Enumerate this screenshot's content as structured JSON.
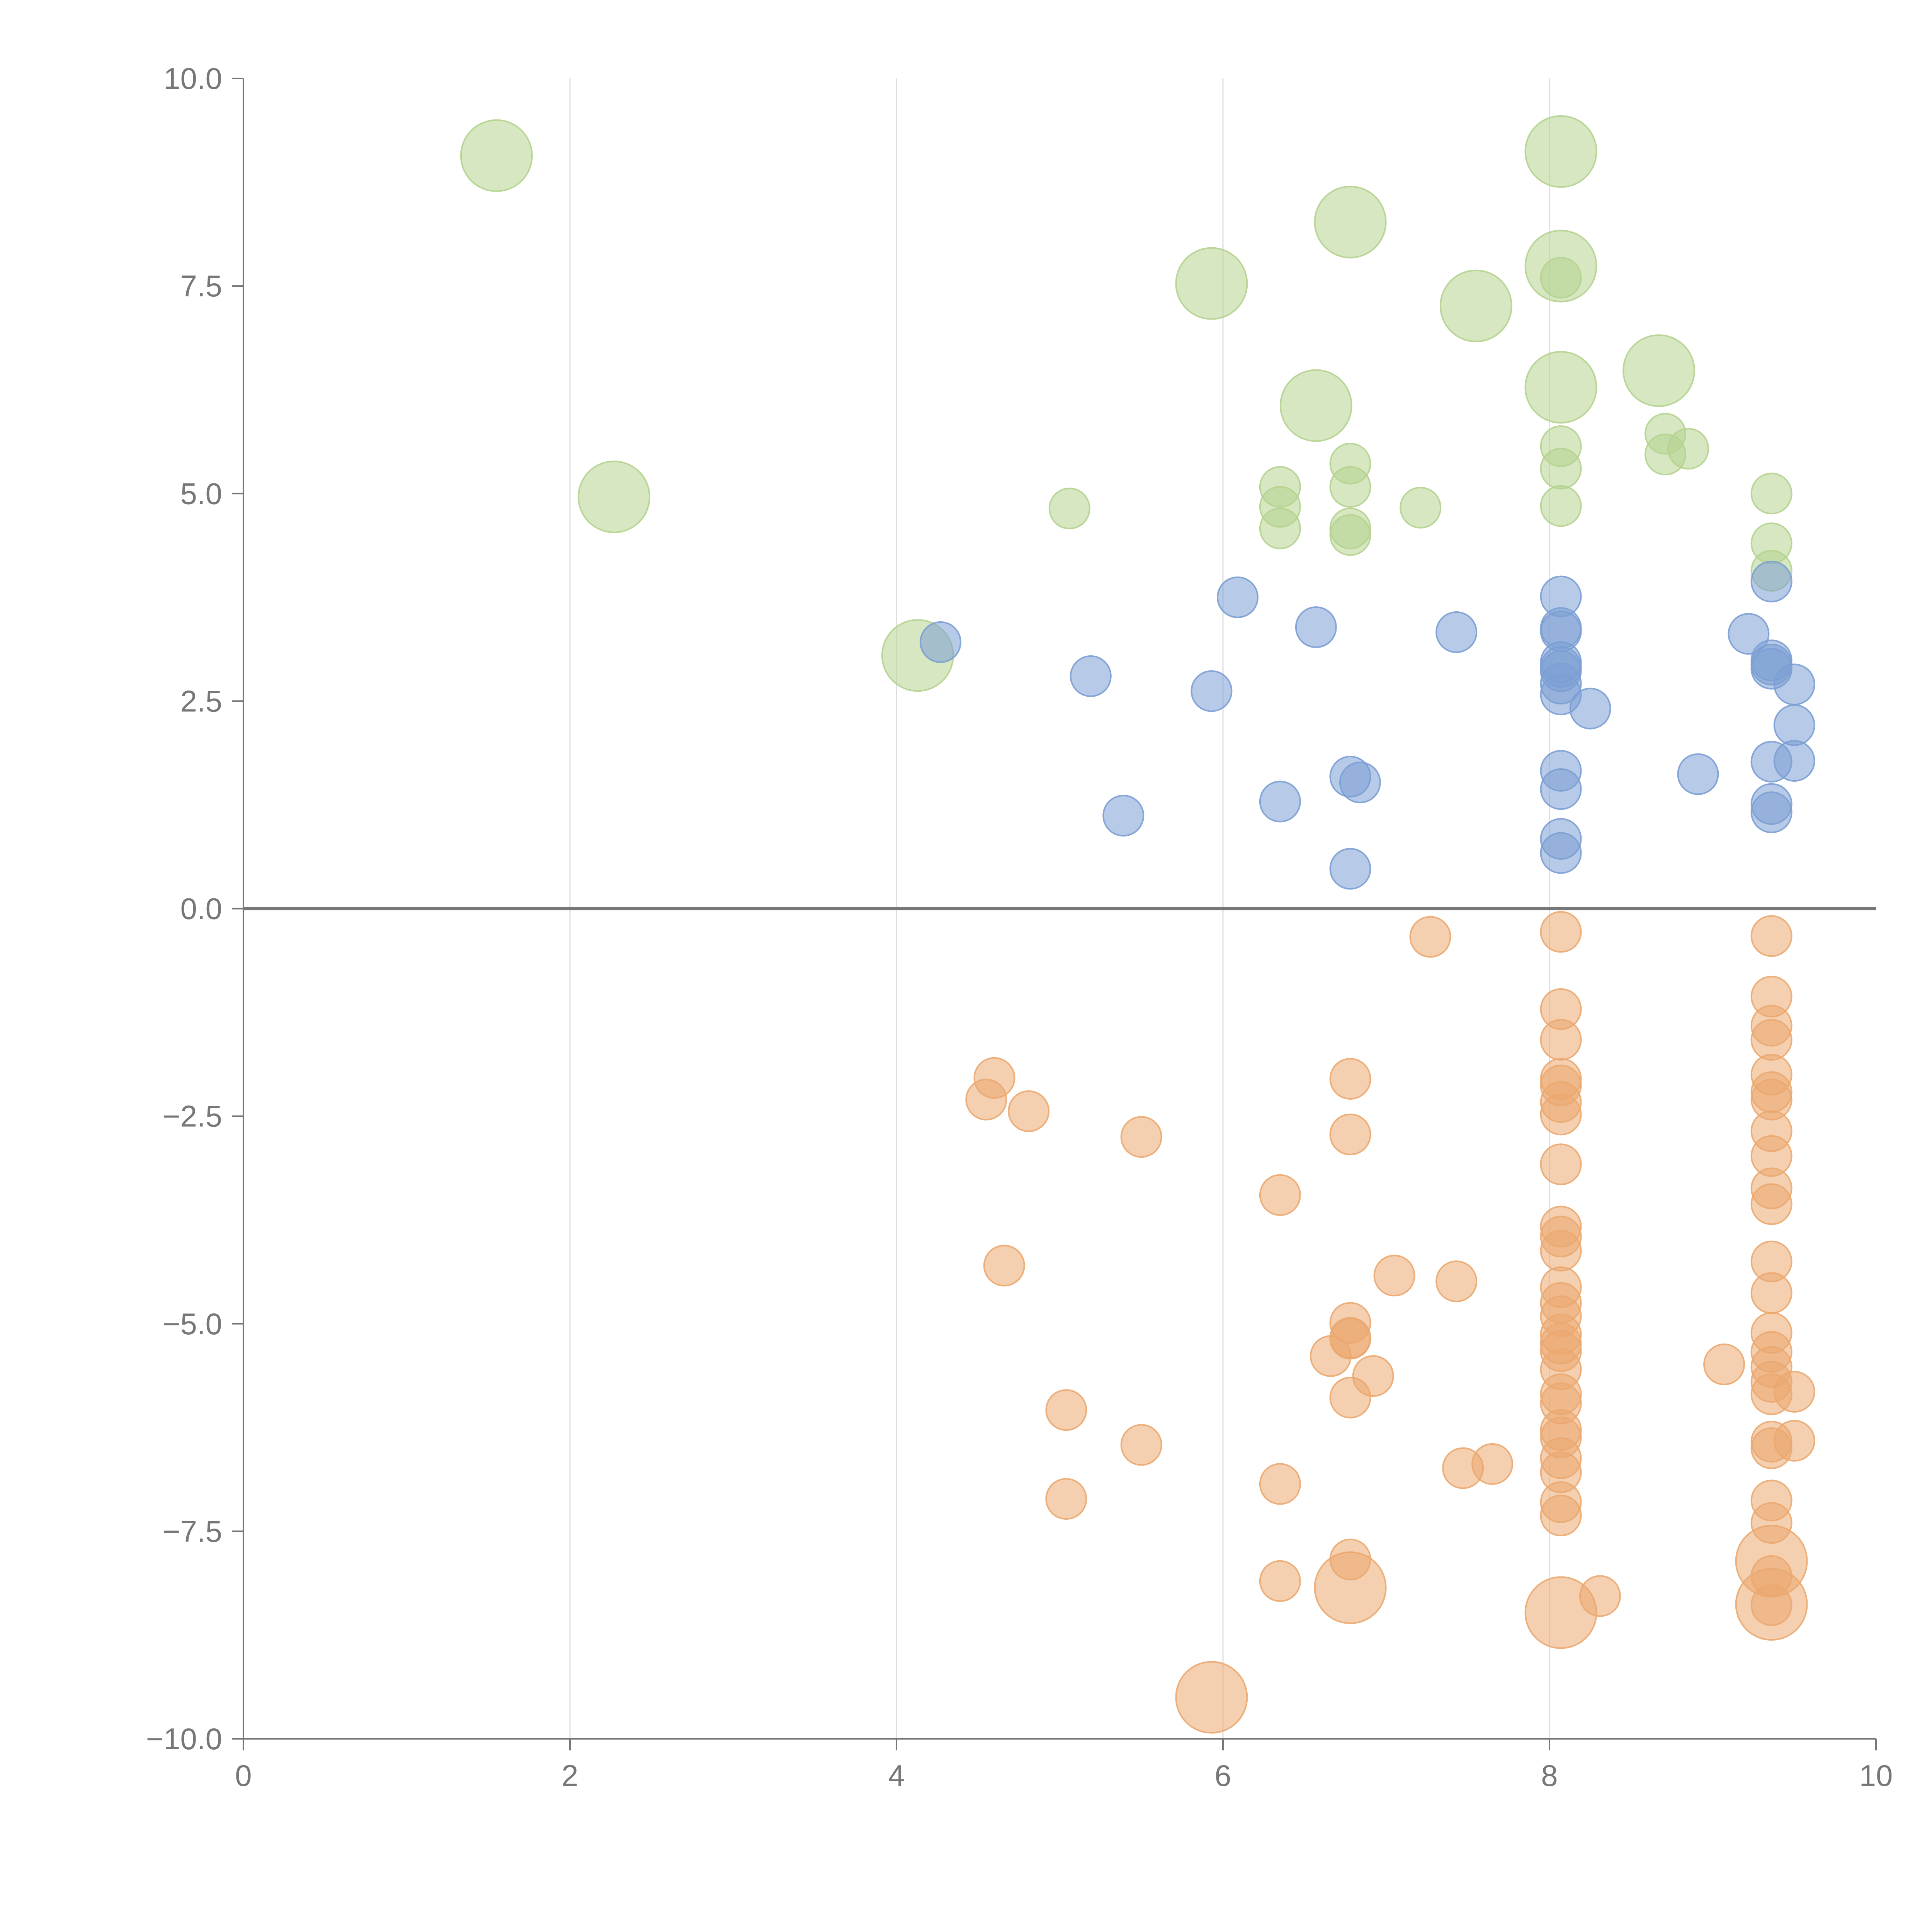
{
  "chart_data": {
    "type": "scatter",
    "title": "",
    "xlabel": "",
    "ylabel": "",
    "xlim": [
      0,
      10
    ],
    "ylim": [
      -10,
      10
    ],
    "x_ticks": [
      "0",
      "2",
      "4",
      "6",
      "8",
      "10"
    ],
    "y_ticks": [
      "−10.0",
      "−7.5",
      "−5.0",
      "−2.5",
      "0.0",
      "2.5",
      "5.0",
      "7.5",
      "10.0"
    ],
    "x_tick_values": [
      0,
      2,
      4,
      6,
      8,
      10
    ],
    "y_tick_values": [
      -10,
      -7.5,
      -5,
      -2.5,
      0,
      2.5,
      5,
      7.5,
      10
    ],
    "grid": "vertical",
    "zero_line": true,
    "legend": "none",
    "series": [
      {
        "color": "#b5d38f",
        "points": [
          {
            "x": 1.55,
            "y": 9.07,
            "size": 3
          },
          {
            "x": 2.27,
            "y": 4.96,
            "size": 3
          },
          {
            "x": 4.13,
            "y": 3.05,
            "size": 3
          },
          {
            "x": 5.06,
            "y": 4.82,
            "size": 1
          },
          {
            "x": 5.93,
            "y": 7.53,
            "size": 3
          },
          {
            "x": 6.35,
            "y": 5.08,
            "size": 1
          },
          {
            "x": 6.35,
            "y": 4.84,
            "size": 1
          },
          {
            "x": 6.35,
            "y": 4.58,
            "size": 1
          },
          {
            "x": 6.57,
            "y": 6.06,
            "size": 3
          },
          {
            "x": 6.78,
            "y": 8.27,
            "size": 3
          },
          {
            "x": 6.78,
            "y": 5.36,
            "size": 1
          },
          {
            "x": 6.78,
            "y": 5.08,
            "size": 1
          },
          {
            "x": 6.78,
            "y": 4.58,
            "size": 1
          },
          {
            "x": 6.78,
            "y": 4.5,
            "size": 1
          },
          {
            "x": 7.21,
            "y": 4.83,
            "size": 1
          },
          {
            "x": 7.55,
            "y": 7.26,
            "size": 3
          },
          {
            "x": 8.07,
            "y": 9.12,
            "size": 3
          },
          {
            "x": 8.07,
            "y": 7.74,
            "size": 3
          },
          {
            "x": 8.07,
            "y": 7.6,
            "size": 1
          },
          {
            "x": 8.07,
            "y": 6.28,
            "size": 3
          },
          {
            "x": 8.07,
            "y": 5.57,
            "size": 1
          },
          {
            "x": 8.07,
            "y": 5.3,
            "size": 1
          },
          {
            "x": 8.07,
            "y": 4.85,
            "size": 1
          },
          {
            "x": 8.67,
            "y": 6.48,
            "size": 3
          },
          {
            "x": 8.71,
            "y": 5.72,
            "size": 1
          },
          {
            "x": 8.71,
            "y": 5.47,
            "size": 1
          },
          {
            "x": 8.85,
            "y": 5.54,
            "size": 1
          },
          {
            "x": 9.36,
            "y": 5.0,
            "size": 1
          },
          {
            "x": 9.36,
            "y": 4.4,
            "size": 1
          },
          {
            "x": 9.36,
            "y": 4.07,
            "size": 1
          }
        ]
      },
      {
        "color": "#7b9fd4",
        "points": [
          {
            "x": 4.27,
            "y": 3.21
          },
          {
            "x": 5.19,
            "y": 2.8
          },
          {
            "x": 5.39,
            "y": 1.12
          },
          {
            "x": 5.93,
            "y": 2.62
          },
          {
            "x": 6.09,
            "y": 3.75
          },
          {
            "x": 6.35,
            "y": 1.29
          },
          {
            "x": 6.57,
            "y": 3.39
          },
          {
            "x": 6.78,
            "y": 1.59
          },
          {
            "x": 6.84,
            "y": 1.52
          },
          {
            "x": 6.78,
            "y": 0.48
          },
          {
            "x": 7.43,
            "y": 3.33
          },
          {
            "x": 8.07,
            "y": 3.76
          },
          {
            "x": 8.07,
            "y": 3.38
          },
          {
            "x": 8.07,
            "y": 3.34
          },
          {
            "x": 8.07,
            "y": 2.97
          },
          {
            "x": 8.07,
            "y": 2.91
          },
          {
            "x": 8.07,
            "y": 2.86
          },
          {
            "x": 8.07,
            "y": 2.71
          },
          {
            "x": 8.07,
            "y": 2.58
          },
          {
            "x": 8.25,
            "y": 2.41
          },
          {
            "x": 8.07,
            "y": 1.66
          },
          {
            "x": 8.07,
            "y": 1.44
          },
          {
            "x": 8.07,
            "y": 0.84
          },
          {
            "x": 8.07,
            "y": 0.67
          },
          {
            "x": 8.91,
            "y": 1.62
          },
          {
            "x": 9.22,
            "y": 3.31
          },
          {
            "x": 9.36,
            "y": 3.94
          },
          {
            "x": 9.36,
            "y": 2.99
          },
          {
            "x": 9.36,
            "y": 2.94
          },
          {
            "x": 9.36,
            "y": 2.89
          },
          {
            "x": 9.5,
            "y": 2.7
          },
          {
            "x": 9.5,
            "y": 2.21
          },
          {
            "x": 9.5,
            "y": 1.78
          },
          {
            "x": 9.36,
            "y": 1.77
          },
          {
            "x": 9.36,
            "y": 1.26
          },
          {
            "x": 9.36,
            "y": 1.16
          }
        ]
      },
      {
        "color": "#eba870",
        "points": [
          {
            "x": 4.55,
            "y": -2.3
          },
          {
            "x": 4.6,
            "y": -2.04
          },
          {
            "x": 4.81,
            "y": -2.44
          },
          {
            "x": 4.66,
            "y": -4.3
          },
          {
            "x": 5.04,
            "y": -6.04
          },
          {
            "x": 5.04,
            "y": -7.11
          },
          {
            "x": 5.5,
            "y": -2.75
          },
          {
            "x": 5.5,
            "y": -6.46
          },
          {
            "x": 5.93,
            "y": -9.5,
            "size": 3
          },
          {
            "x": 6.35,
            "y": -3.45
          },
          {
            "x": 6.35,
            "y": -6.93
          },
          {
            "x": 6.35,
            "y": -8.1
          },
          {
            "x": 6.66,
            "y": -5.39
          },
          {
            "x": 6.78,
            "y": -2.05
          },
          {
            "x": 6.78,
            "y": -2.72
          },
          {
            "x": 6.78,
            "y": -4.99
          },
          {
            "x": 6.78,
            "y": -5.17
          },
          {
            "x": 6.78,
            "y": -5.18
          },
          {
            "x": 6.78,
            "y": -5.89
          },
          {
            "x": 6.78,
            "y": -7.84
          },
          {
            "x": 6.78,
            "y": -8.18,
            "size": 3
          },
          {
            "x": 6.92,
            "y": -5.63
          },
          {
            "x": 7.05,
            "y": -4.42
          },
          {
            "x": 7.27,
            "y": -0.34
          },
          {
            "x": 7.43,
            "y": -4.49
          },
          {
            "x": 7.47,
            "y": -6.74
          },
          {
            "x": 7.65,
            "y": -6.69
          },
          {
            "x": 8.07,
            "y": -0.28
          },
          {
            "x": 8.07,
            "y": -1.21
          },
          {
            "x": 8.07,
            "y": -1.58
          },
          {
            "x": 8.07,
            "y": -2.05
          },
          {
            "x": 8.07,
            "y": -2.13
          },
          {
            "x": 8.07,
            "y": -2.33
          },
          {
            "x": 8.07,
            "y": -2.48
          },
          {
            "x": 8.07,
            "y": -3.08
          },
          {
            "x": 8.07,
            "y": -3.83
          },
          {
            "x": 8.07,
            "y": -3.95
          },
          {
            "x": 8.07,
            "y": -4.12
          },
          {
            "x": 8.07,
            "y": -4.56
          },
          {
            "x": 8.07,
            "y": -4.75
          },
          {
            "x": 8.07,
            "y": -4.91
          },
          {
            "x": 8.07,
            "y": -5.13
          },
          {
            "x": 8.07,
            "y": -5.24
          },
          {
            "x": 8.07,
            "y": -5.33
          },
          {
            "x": 8.07,
            "y": -5.55
          },
          {
            "x": 8.07,
            "y": -5.85
          },
          {
            "x": 8.07,
            "y": -5.96
          },
          {
            "x": 8.07,
            "y": -6.28
          },
          {
            "x": 8.07,
            "y": -6.37
          },
          {
            "x": 8.07,
            "y": -6.62
          },
          {
            "x": 8.07,
            "y": -6.79
          },
          {
            "x": 8.07,
            "y": -7.15
          },
          {
            "x": 8.07,
            "y": -7.31
          },
          {
            "x": 8.07,
            "y": -8.48,
            "size": 3
          },
          {
            "x": 8.31,
            "y": -8.28
          },
          {
            "x": 9.07,
            "y": -5.49
          },
          {
            "x": 9.36,
            "y": -0.33
          },
          {
            "x": 9.36,
            "y": -1.06
          },
          {
            "x": 9.36,
            "y": -1.41
          },
          {
            "x": 9.36,
            "y": -1.58
          },
          {
            "x": 9.36,
            "y": -2.0
          },
          {
            "x": 9.36,
            "y": -2.21
          },
          {
            "x": 9.36,
            "y": -2.3
          },
          {
            "x": 9.36,
            "y": -2.68
          },
          {
            "x": 9.36,
            "y": -2.98
          },
          {
            "x": 9.36,
            "y": -3.37
          },
          {
            "x": 9.36,
            "y": -3.56
          },
          {
            "x": 9.36,
            "y": -4.25
          },
          {
            "x": 9.36,
            "y": -4.63
          },
          {
            "x": 9.36,
            "y": -5.11
          },
          {
            "x": 9.36,
            "y": -5.34
          },
          {
            "x": 9.36,
            "y": -5.52
          },
          {
            "x": 9.36,
            "y": -5.7
          },
          {
            "x": 9.36,
            "y": -5.85
          },
          {
            "x": 9.36,
            "y": -6.42
          },
          {
            "x": 9.36,
            "y": -6.5
          },
          {
            "x": 9.5,
            "y": -5.82
          },
          {
            "x": 9.5,
            "y": -6.41
          },
          {
            "x": 9.36,
            "y": -7.13
          },
          {
            "x": 9.36,
            "y": -7.4
          },
          {
            "x": 9.36,
            "y": -7.86,
            "size": 3
          },
          {
            "x": 9.36,
            "y": -8.04
          },
          {
            "x": 9.36,
            "y": -8.38,
            "size": 3
          },
          {
            "x": 9.36,
            "y": -8.39
          }
        ]
      }
    ]
  }
}
